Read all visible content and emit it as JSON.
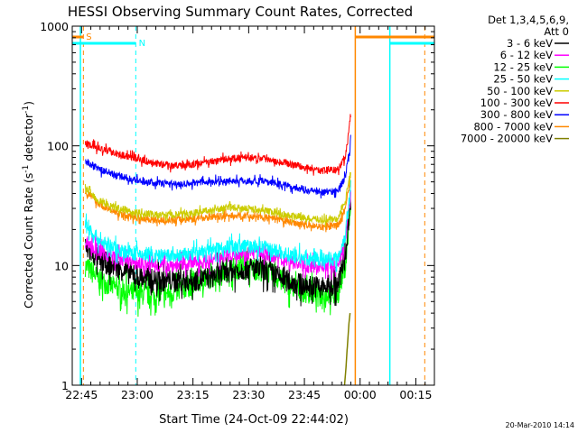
{
  "chart_data": {
    "type": "line",
    "title": "HESSI Observing Summary Count Rates, Corrected",
    "xlabel": "Start Time (24-Oct-09 22:44:02)",
    "ylabel": "Corrected Count Rate (s",
    "ylabel_sup1": "-1",
    "ylabel_mid": " detector",
    "ylabel_sup2": "-1",
    "ylabel_end": ")",
    "yscale": "log",
    "ylim": [
      1,
      1000
    ],
    "xlim_minutes": [
      -2.5,
      95
    ],
    "xticks": [
      {
        "m": 0,
        "label": "22:45"
      },
      {
        "m": 15,
        "label": "23:00"
      },
      {
        "m": 30,
        "label": "23:15"
      },
      {
        "m": 45,
        "label": "23:30"
      },
      {
        "m": 60,
        "label": "23:45"
      },
      {
        "m": 75,
        "label": "00:00"
      },
      {
        "m": 90,
        "label": "00:15"
      }
    ],
    "yticks": [
      {
        "v": 1,
        "label": "1"
      },
      {
        "v": 10,
        "label": "10"
      },
      {
        "v": 100,
        "label": "100"
      },
      {
        "v": 1000,
        "label": "1000"
      }
    ],
    "legend_header": [
      "Det 1,3,4,5,6,9,",
      "Att 0"
    ],
    "legend_position": "right",
    "series": [
      {
        "name": "3 - 6 keV",
        "color": "#000000",
        "x": [
          1,
          5,
          10,
          15,
          20,
          25,
          30,
          35,
          40,
          45,
          50,
          55,
          60,
          65,
          69,
          71,
          72,
          72.5
        ],
        "y": [
          14,
          11,
          9.5,
          8,
          7.5,
          7.5,
          7.5,
          8,
          9,
          9.5,
          9,
          7.5,
          6.8,
          6.6,
          6.8,
          12,
          25,
          37
        ]
      },
      {
        "name": "6 - 12 keV",
        "color": "#ff00ff",
        "x": [
          1,
          5,
          10,
          15,
          20,
          25,
          30,
          35,
          40,
          45,
          50,
          55,
          60,
          65,
          69,
          71,
          72,
          72.5
        ],
        "y": [
          16,
          13,
          11.5,
          10.5,
          10,
          10,
          10.5,
          11,
          12.5,
          13,
          12.5,
          11,
          10,
          9.8,
          10,
          16,
          30,
          40
        ]
      },
      {
        "name": "12 - 25 keV",
        "color": "#00ff00",
        "x": [
          1,
          5,
          10,
          15,
          20,
          25,
          30,
          35,
          40,
          45,
          50,
          55,
          60,
          65,
          69,
          71,
          72,
          72.5
        ],
        "y": [
          10,
          7.5,
          6.3,
          5.8,
          5.6,
          6,
          7,
          8,
          9.5,
          9.5,
          9,
          7,
          6,
          5.8,
          5.8,
          10,
          22,
          32
        ]
      },
      {
        "name": "25 - 50 keV",
        "color": "#00ffff",
        "x": [
          1,
          5,
          10,
          15,
          20,
          25,
          30,
          35,
          40,
          45,
          50,
          55,
          60,
          65,
          69,
          71,
          72,
          72.5
        ],
        "y": [
          22,
          16,
          13.5,
          12.5,
          12,
          12,
          12.5,
          13.5,
          14.5,
          14.5,
          14,
          12.5,
          11.5,
          11.2,
          11.5,
          18,
          34,
          45
        ]
      },
      {
        "name": "50 - 100 keV",
        "color": "#cccc00",
        "x": [
          1,
          5,
          10,
          15,
          20,
          25,
          30,
          35,
          40,
          45,
          50,
          55,
          60,
          65,
          69,
          71,
          72,
          72.5
        ],
        "y": [
          45,
          34,
          30,
          27.5,
          26.5,
          26.5,
          27.5,
          29,
          30.5,
          30,
          28.5,
          26.5,
          25,
          24,
          24.5,
          34,
          50,
          60
        ]
      },
      {
        "name": "100 - 300 keV",
        "color": "#ff0000",
        "x": [
          1,
          5,
          10,
          15,
          20,
          25,
          30,
          35,
          40,
          45,
          50,
          55,
          60,
          65,
          69,
          71,
          72,
          72.5
        ],
        "y": [
          105,
          94,
          86,
          78,
          71,
          68,
          70,
          74,
          78,
          80,
          78,
          72,
          66,
          62,
          63,
          80,
          130,
          200
        ]
      },
      {
        "name": "300 - 800 keV",
        "color": "#0000ff",
        "x": [
          1,
          5,
          10,
          15,
          20,
          25,
          30,
          35,
          40,
          45,
          50,
          55,
          60,
          65,
          69,
          71,
          72,
          72.5
        ],
        "y": [
          75,
          63,
          56,
          51,
          49,
          48,
          49,
          50,
          51,
          51,
          50,
          47,
          43,
          41,
          42,
          55,
          85,
          110
        ]
      },
      {
        "name": "800 - 7000 keV",
        "color": "#ff8800",
        "x": [
          1,
          5,
          10,
          15,
          20,
          25,
          30,
          35,
          40,
          45,
          50,
          55,
          60,
          65,
          69,
          71,
          72,
          72.5
        ],
        "y": [
          42,
          32,
          27,
          25,
          24,
          24,
          24.5,
          25.5,
          26,
          26,
          25,
          23.5,
          22,
          21,
          21.5,
          30,
          45,
          55
        ]
      },
      {
        "name": "7000 - 20000 keV",
        "color": "#808000",
        "x": [
          70.8,
          71.2,
          71.6,
          72,
          72.3
        ],
        "y": [
          1,
          1.4,
          2.2,
          3.3,
          4
        ]
      }
    ],
    "annotations": [
      {
        "text": "S",
        "color": "#ff8800"
      },
      {
        "text": "N",
        "color": "#00ffff"
      }
    ]
  },
  "footer": {
    "date": "20-Mar-2010 14:14"
  }
}
